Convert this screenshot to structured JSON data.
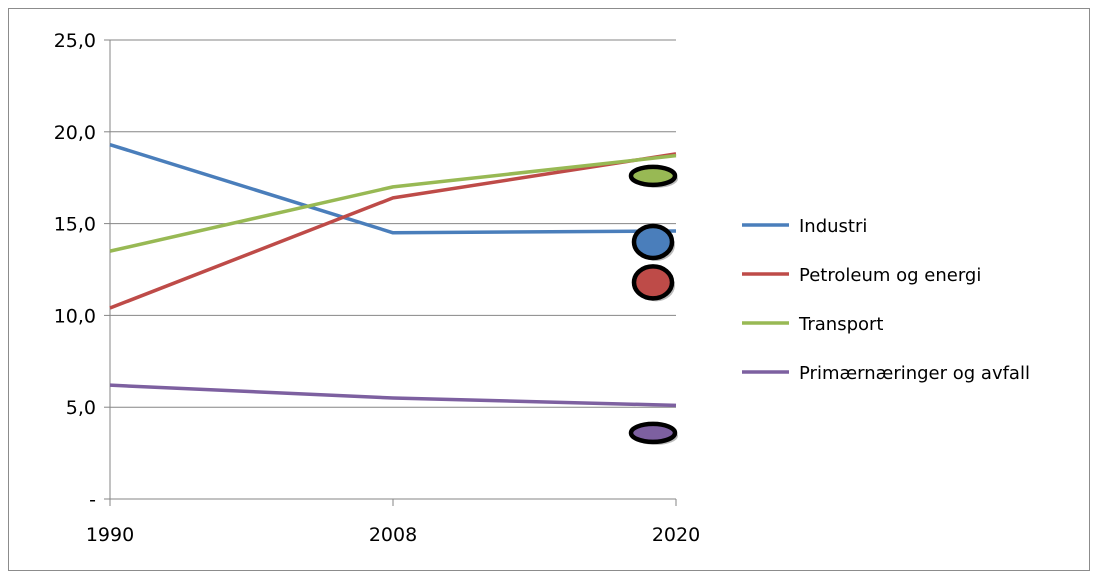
{
  "chart_data": {
    "type": "line",
    "x": [
      "1990",
      "2008",
      "2020"
    ],
    "y_ticks": [
      "-",
      "5,0",
      "10,0",
      "15,0",
      "20,0",
      "25,0"
    ],
    "ylim": [
      0,
      25
    ],
    "grid": true,
    "legend_placement": "right",
    "series": [
      {
        "name": "Industri",
        "values": [
          19.3,
          14.5,
          14.6
        ],
        "color": "#4a7ebb",
        "marker_2020": 14.0
      },
      {
        "name": "Petroleum og energi",
        "values": [
          10.4,
          16.4,
          18.8
        ],
        "color": "#be4b48",
        "marker_2020": 11.8
      },
      {
        "name": "Transport",
        "values": [
          13.5,
          17.0,
          18.7
        ],
        "color": "#98b954",
        "marker_2020": 17.6
      },
      {
        "name": "Primærnæringer og avfall",
        "values": [
          6.2,
          5.5,
          5.1
        ],
        "color": "#7d60a0",
        "marker_2020": 3.6
      }
    ]
  }
}
